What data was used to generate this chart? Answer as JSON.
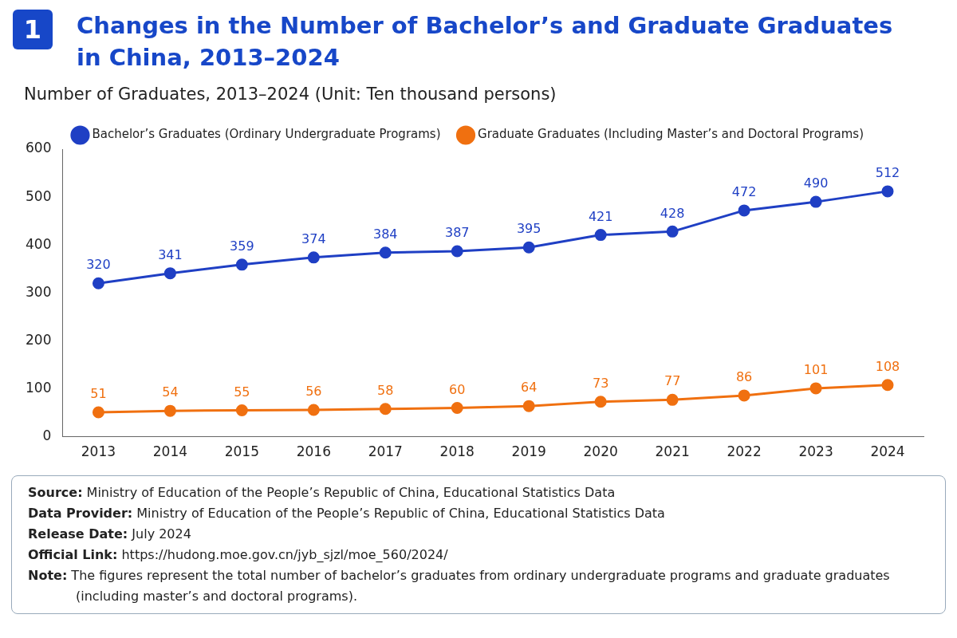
{
  "chart_data": {
    "type": "line",
    "title": "Changes in the Number of Bachelor’s and Graduate Graduates in China, 2013–2024",
    "subtitle": "Number of Graduates, 2013–2024 (Unit: Ten thousand persons)",
    "categories": [
      "2013",
      "2014",
      "2015",
      "2016",
      "2017",
      "2018",
      "2019",
      "2020",
      "2021",
      "2022",
      "2023",
      "2024"
    ],
    "series": [
      {
        "name": "Bachelor’s Graduates (Ordinary Undergraduate Programs)",
        "color": "#1f3fc4",
        "values": [
          320,
          341,
          359,
          374,
          384,
          387,
          395,
          421,
          428,
          472,
          490,
          512
        ]
      },
      {
        "name": "Graduate Graduates (Including Master’s and Doctoral Programs)",
        "color": "#f07010",
        "values": [
          51,
          54,
          55,
          56,
          58,
          60,
          64,
          73,
          77,
          86,
          101,
          108
        ]
      }
    ],
    "ylim": [
      0,
      600
    ],
    "yticks": [
      0,
      100,
      200,
      300,
      400,
      500,
      600
    ],
    "grid": false,
    "legend": "top",
    "marker": "circle",
    "line_style": "solid",
    "data_labels": true,
    "annotations": [
      "1",
      "Source: Ministry of Education of the People’s Republic of China, Educational Statistics Data",
      "Data Provider: Ministry of Education of the People’s Republic of China, Educational Statistics Data",
      "Release Date: July 2024",
      "Official Link: https://hudong.moe.gov.cn/jyb_sjzl/moe_560/2024/",
      "Note: The figures represent the total number of bachelor’s graduates from ordinary undergraduate programs and graduate graduates (including master’s and doctoral programs)."
    ]
  }
}
